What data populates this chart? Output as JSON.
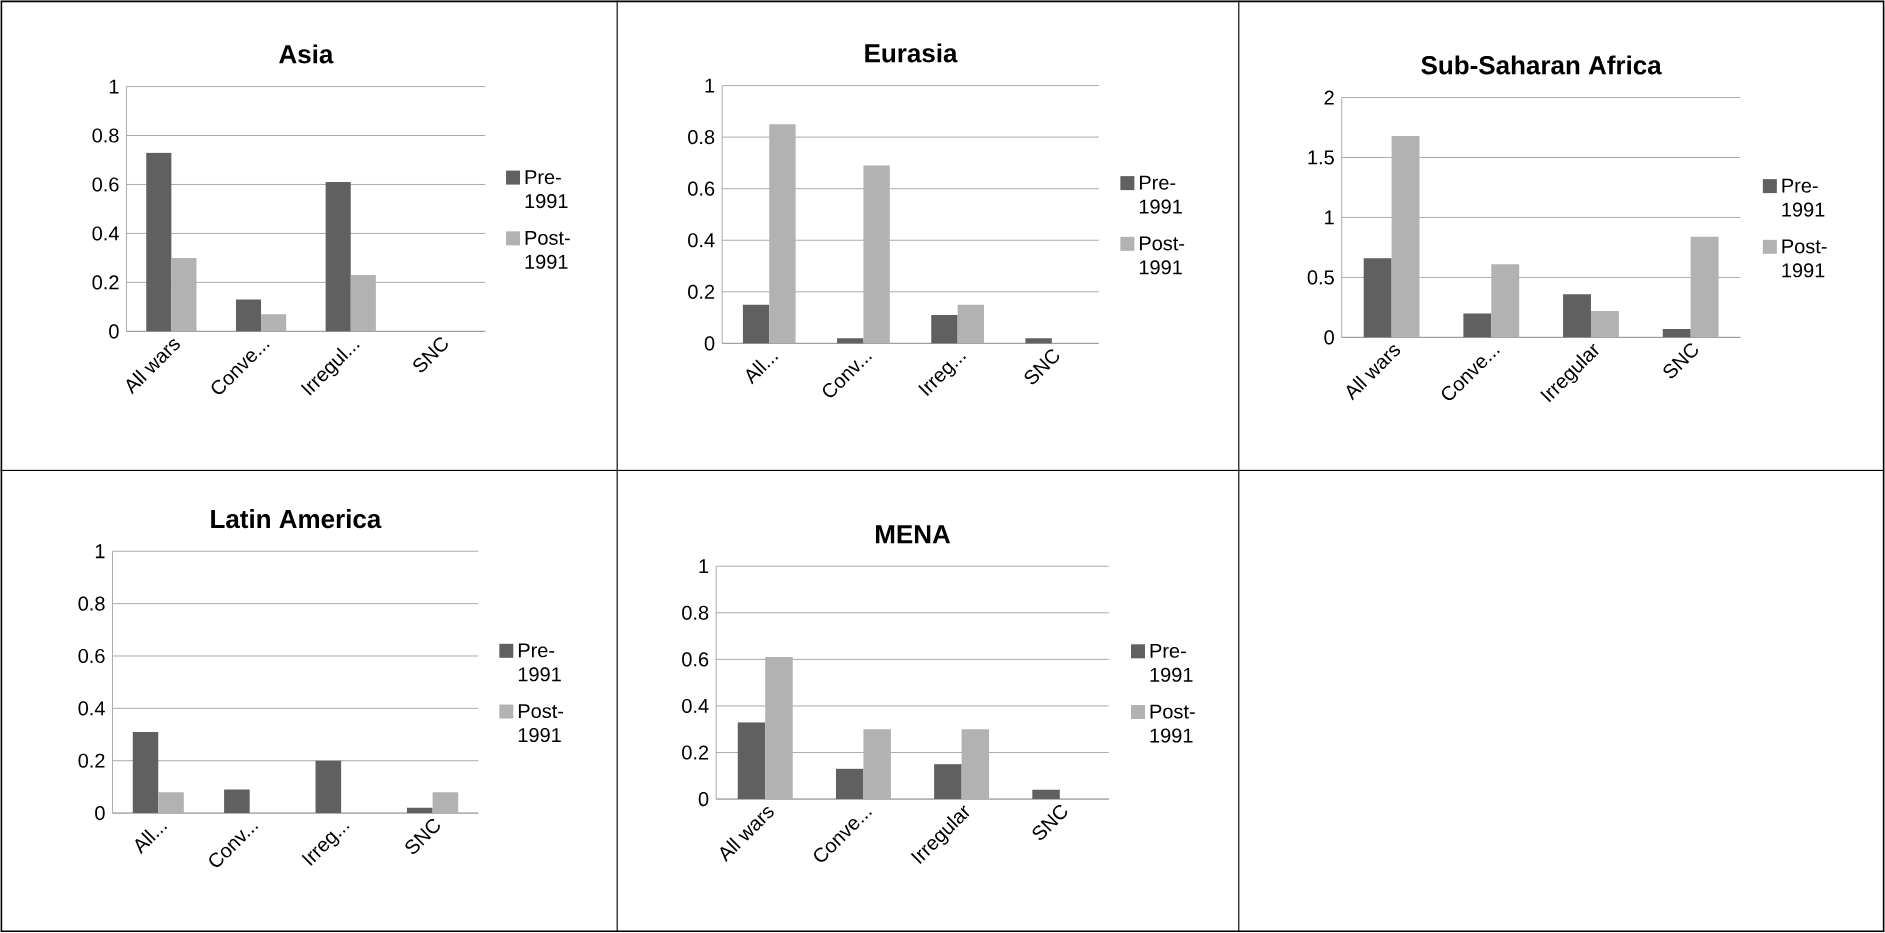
{
  "chart_data": [
    {
      "type": "bar",
      "title": "Asia",
      "categories": [
        "All wars",
        "Conve...",
        "Irregul...",
        "SNC"
      ],
      "series": [
        {
          "name": "Pre-1991",
          "color": "#606060",
          "values": [
            0.73,
            0.13,
            0.61,
            0
          ]
        },
        {
          "name": "Post-1991",
          "color": "#b2b2b2",
          "values": [
            0.3,
            0.07,
            0.23,
            0
          ]
        }
      ],
      "ylim": [
        0,
        1
      ],
      "yticks": [
        0,
        0.2,
        0.4,
        0.6,
        0.8,
        1
      ],
      "grid": "y",
      "legend": "right"
    },
    {
      "type": "bar",
      "title": "Eurasia",
      "categories": [
        "All...",
        "Conv...",
        "Irreg...",
        "SNC"
      ],
      "series": [
        {
          "name": "Pre-1991",
          "color": "#606060",
          "values": [
            0.15,
            0.02,
            0.11,
            0.02
          ]
        },
        {
          "name": "Post-1991",
          "color": "#b2b2b2",
          "values": [
            0.85,
            0.69,
            0.15,
            0
          ]
        }
      ],
      "ylim": [
        0,
        1
      ],
      "yticks": [
        0,
        0.2,
        0.4,
        0.6,
        0.8,
        1
      ],
      "grid": "y",
      "legend": "right"
    },
    {
      "type": "bar",
      "title": "Sub-Saharan Africa",
      "categories": [
        "All wars",
        "Conve...",
        "Irregular",
        "SNC"
      ],
      "series": [
        {
          "name": "Pre-1991",
          "color": "#606060",
          "values": [
            0.66,
            0.2,
            0.36,
            0.07
          ]
        },
        {
          "name": "Post-1991",
          "color": "#b2b2b2",
          "values": [
            1.68,
            0.61,
            0.22,
            0.84
          ]
        }
      ],
      "ylim": [
        0,
        2
      ],
      "yticks": [
        0,
        0.5,
        1,
        1.5,
        2
      ],
      "grid": "y",
      "legend": "right"
    },
    {
      "type": "bar",
      "title": "Latin America",
      "categories": [
        "All...",
        "Conv...",
        "Irreg...",
        "SNC"
      ],
      "series": [
        {
          "name": "Pre-1991",
          "color": "#606060",
          "values": [
            0.31,
            0.09,
            0.2,
            0.02
          ]
        },
        {
          "name": "Post-1991",
          "color": "#b2b2b2",
          "values": [
            0.08,
            0,
            0,
            0.08
          ]
        }
      ],
      "ylim": [
        0,
        1
      ],
      "yticks": [
        0,
        0.2,
        0.4,
        0.6,
        0.8,
        1
      ],
      "grid": "y",
      "legend": "right"
    },
    {
      "type": "bar",
      "title": "MENA",
      "categories": [
        "All wars",
        "Conve...",
        "Irregular",
        "SNC"
      ],
      "series": [
        {
          "name": "Pre-1991",
          "color": "#606060",
          "values": [
            0.33,
            0.13,
            0.15,
            0.04
          ]
        },
        {
          "name": "Post-1991",
          "color": "#b2b2b2",
          "values": [
            0.61,
            0.3,
            0.3,
            0
          ]
        }
      ],
      "ylim": [
        0,
        1
      ],
      "yticks": [
        0,
        0.2,
        0.4,
        0.6,
        0.8,
        1
      ],
      "grid": "y",
      "legend": "right"
    }
  ]
}
